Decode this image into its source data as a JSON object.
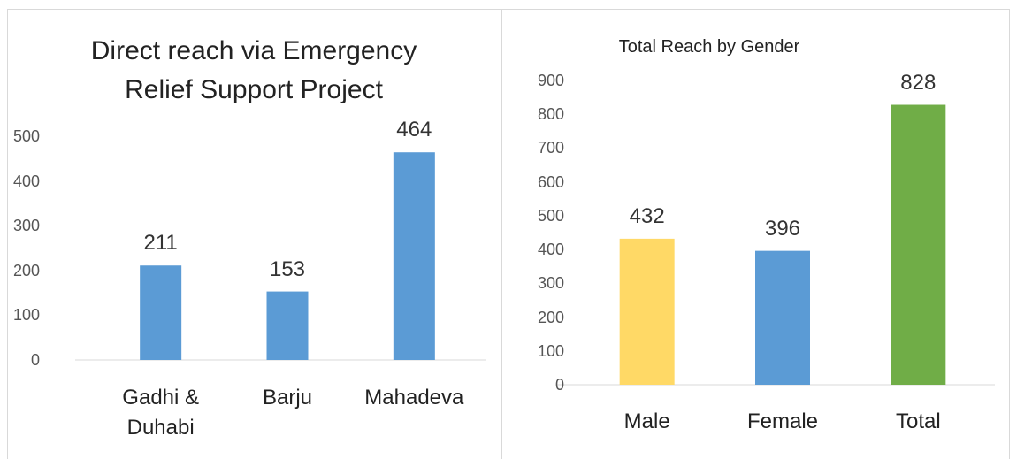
{
  "chart_data": [
    {
      "type": "bar",
      "title": "Direct reach via Emergency Relief Support Project",
      "categories": [
        "Gadhi & Duhabi",
        "Barju",
        "Mahadeva"
      ],
      "values": [
        211,
        153,
        464
      ],
      "color": "#5b9bd5",
      "ylim": [
        0,
        500
      ],
      "yticks": [
        0,
        100,
        200,
        300,
        400,
        500
      ]
    },
    {
      "type": "bar",
      "title": "Total Reach by Gender",
      "categories": [
        "Male",
        "Female",
        "Total"
      ],
      "values": [
        432,
        396,
        828
      ],
      "colors": [
        "#ffd966",
        "#5b9bd5",
        "#70ad47"
      ],
      "ylim": [
        0,
        900
      ],
      "yticks": [
        0,
        100,
        200,
        300,
        400,
        500,
        600,
        700,
        800,
        900
      ]
    }
  ]
}
